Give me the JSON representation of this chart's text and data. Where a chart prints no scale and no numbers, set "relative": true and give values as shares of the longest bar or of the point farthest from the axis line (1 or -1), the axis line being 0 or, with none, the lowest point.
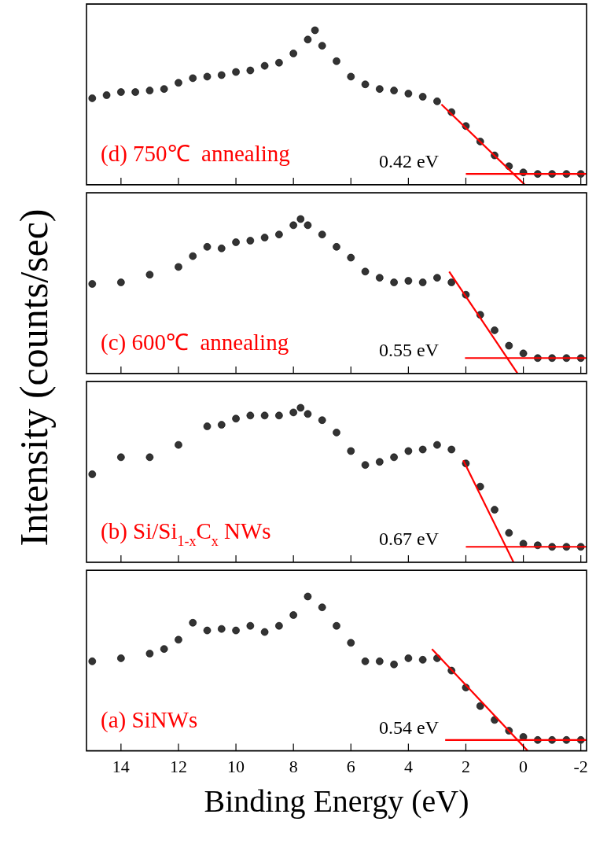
{
  "chart_data": [
    {
      "type": "scatter",
      "title": "(d) 750℃  annealing",
      "ylabel": "Intensity (counts/sec)",
      "annotations": [
        "0.42 eV"
      ],
      "relative": true,
      "tick_labels": false,
      "marker": "circle",
      "xlim": [
        15.2,
        -2.2
      ],
      "xticks": [
        14,
        12,
        10,
        8,
        6,
        4,
        2,
        0,
        -2
      ],
      "series": [
        {
          "color": "#333333",
          "x": [
            15,
            14.5,
            14,
            13.5,
            13,
            12.5,
            12,
            11.5,
            11,
            10.5,
            10,
            9.5,
            9,
            8.5,
            8,
            7.5,
            7.25,
            7,
            6.5,
            6,
            5.5,
            5,
            4.5,
            4,
            3.5,
            3,
            2.5,
            2,
            1.5,
            1,
            0.5,
            0,
            -0.5,
            -1,
            -1.5,
            -2
          ],
          "values": [
            0.56,
            0.58,
            0.6,
            0.6,
            0.61,
            0.62,
            0.66,
            0.69,
            0.7,
            0.71,
            0.73,
            0.74,
            0.77,
            0.79,
            0.85,
            0.94,
            1,
            0.9,
            0.8,
            0.7,
            0.65,
            0.62,
            0.61,
            0.59,
            0.57,
            0.54,
            0.47,
            0.38,
            0.28,
            0.19,
            0.12,
            0.08,
            0.07,
            0.07,
            0.07,
            0.07
          ]
        },
        {
          "type": "line",
          "marker": "none",
          "color": "#ff0000",
          "x": [
            2.85,
            -0.05
          ],
          "values": [
            0.52,
            0
          ]
        },
        {
          "type": "line",
          "marker": "none",
          "color": "#ff0000",
          "x": [
            2.0,
            -2.2
          ],
          "values": [
            0.07,
            0.07
          ]
        }
      ]
    },
    {
      "type": "scatter",
      "title": "(c) 600℃  annealing",
      "annotations": [
        "0.55 eV"
      ],
      "relative": true,
      "tick_labels": false,
      "marker": "circle",
      "xlim": [
        15.2,
        -2.2
      ],
      "xticks": [
        14,
        12,
        10,
        8,
        6,
        4,
        2,
        0,
        -2
      ],
      "series": [
        {
          "color": "#333333",
          "x": [
            15,
            14,
            13,
            12,
            11.5,
            11,
            10.5,
            10,
            9.5,
            9,
            8.5,
            8,
            7.75,
            7.5,
            7,
            6.5,
            6,
            5.5,
            5,
            4.5,
            4,
            3.5,
            3,
            2.5,
            2,
            1.5,
            1,
            0.5,
            0,
            -0.5,
            -1,
            -1.5,
            -2
          ],
          "values": [
            0.58,
            0.59,
            0.64,
            0.69,
            0.76,
            0.82,
            0.81,
            0.85,
            0.86,
            0.88,
            0.9,
            0.96,
            1,
            0.96,
            0.9,
            0.82,
            0.75,
            0.66,
            0.62,
            0.59,
            0.6,
            0.59,
            0.62,
            0.59,
            0.51,
            0.38,
            0.28,
            0.18,
            0.13,
            0.1,
            0.1,
            0.1,
            0.1
          ]
        },
        {
          "type": "line",
          "marker": "none",
          "color": "#ff0000",
          "x": [
            2.58,
            0.2
          ],
          "values": [
            0.66,
            0
          ]
        },
        {
          "type": "line",
          "marker": "none",
          "color": "#ff0000",
          "x": [
            2.03,
            -2.2
          ],
          "values": [
            0.1,
            0.1
          ]
        }
      ]
    },
    {
      "type": "scatter",
      "title": "(b) Si/Si$_{1-x}$C$_{x}$ NWs",
      "annotations": [
        "0.67 eV"
      ],
      "relative": true,
      "tick_labels": false,
      "marker": "circle",
      "xlim": [
        15.2,
        -2.2
      ],
      "xticks": [
        14,
        12,
        10,
        8,
        6,
        4,
        2,
        0,
        -2
      ],
      "series": [
        {
          "color": "#333333",
          "x": [
            15,
            14,
            13,
            12,
            11,
            10.5,
            10,
            9.5,
            9,
            8.5,
            8,
            7.75,
            7.5,
            7,
            6.5,
            6,
            5.5,
            5,
            4.5,
            4,
            3.5,
            3,
            2.5,
            2,
            1.5,
            1,
            0.5,
            0,
            -0.5,
            -1,
            -1.5,
            -2
          ],
          "values": [
            0.57,
            0.68,
            0.68,
            0.76,
            0.88,
            0.89,
            0.93,
            0.95,
            0.95,
            0.95,
            0.97,
            1,
            0.96,
            0.92,
            0.84,
            0.72,
            0.63,
            0.65,
            0.68,
            0.72,
            0.73,
            0.76,
            0.73,
            0.64,
            0.49,
            0.34,
            0.19,
            0.12,
            0.11,
            0.1,
            0.1,
            0.1
          ]
        },
        {
          "type": "line",
          "marker": "none",
          "color": "#ff0000",
          "x": [
            2.09,
            0.34
          ],
          "values": [
            0.66,
            0
          ]
        },
        {
          "type": "line",
          "marker": "none",
          "color": "#ff0000",
          "x": [
            2.0,
            -2.2
          ],
          "values": [
            0.1,
            0.1
          ]
        }
      ]
    },
    {
      "type": "scatter",
      "title": "(a) SiNWs",
      "xlabel": "Binding Energy (eV)",
      "annotations": [
        "0.54 eV"
      ],
      "relative": true,
      "tick_labels": "x",
      "marker": "circle",
      "xlim": [
        15.2,
        -2.2
      ],
      "xticks": [
        14,
        12,
        10,
        8,
        6,
        4,
        2,
        0,
        -2
      ],
      "series": [
        {
          "color": "#333333",
          "x": [
            15,
            14,
            13,
            12.5,
            12,
            11.5,
            11,
            10.5,
            10,
            9.5,
            9,
            8.5,
            8,
            7.5,
            7,
            6.5,
            6,
            5.5,
            5,
            4.5,
            4,
            3.5,
            3,
            2.5,
            2,
            1.5,
            1,
            0.5,
            0,
            -0.5,
            -1,
            -1.5,
            -2
          ],
          "values": [
            0.58,
            0.6,
            0.63,
            0.66,
            0.72,
            0.83,
            0.78,
            0.79,
            0.78,
            0.81,
            0.77,
            0.81,
            0.88,
            1,
            0.93,
            0.81,
            0.7,
            0.58,
            0.58,
            0.56,
            0.6,
            0.59,
            0.6,
            0.52,
            0.41,
            0.29,
            0.2,
            0.13,
            0.09,
            0.07,
            0.07,
            0.07,
            0.07
          ]
        },
        {
          "type": "line",
          "marker": "none",
          "color": "#ff0000",
          "x": [
            3.18,
            -0.15
          ],
          "values": [
            0.66,
            0
          ]
        },
        {
          "type": "line",
          "marker": "none",
          "color": "#ff0000",
          "x": [
            2.72,
            -2.2
          ],
          "values": [
            0.07,
            0.07
          ]
        }
      ]
    }
  ]
}
